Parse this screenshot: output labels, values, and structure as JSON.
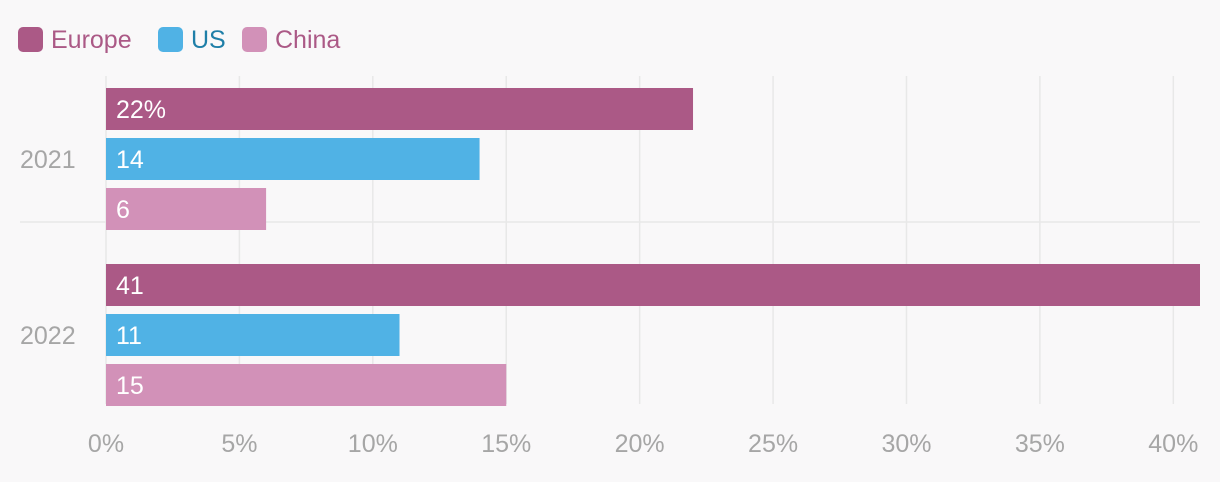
{
  "chart_data": {
    "type": "bar",
    "orientation": "horizontal",
    "categories": [
      "2021",
      "2022"
    ],
    "series": [
      {
        "name": "Europe",
        "color": "#ab5986",
        "values": [
          22,
          41
        ]
      },
      {
        "name": "US",
        "color": "#50b2e5",
        "values": [
          14,
          11
        ]
      },
      {
        "name": "China",
        "color": "#d291b8",
        "values": [
          6,
          15
        ]
      }
    ],
    "data_labels": [
      [
        "22%",
        "41"
      ],
      [
        "14",
        "11"
      ],
      [
        "6",
        "15"
      ]
    ],
    "x_ticks": [
      "0%",
      "5%",
      "10%",
      "15%",
      "20%",
      "25%",
      "30%",
      "35%",
      "40%"
    ],
    "x_tick_values": [
      0,
      5,
      10,
      15,
      20,
      25,
      30,
      35,
      40
    ],
    "xlim": [
      0,
      41
    ],
    "grid": true,
    "legend_position": "top-left",
    "legend_text_colors": [
      "#ab5986",
      "#1f7fa8",
      "#ab5986"
    ],
    "gridline_color": "#e8e8e8",
    "tick_label_color": "#a6a6a6"
  }
}
